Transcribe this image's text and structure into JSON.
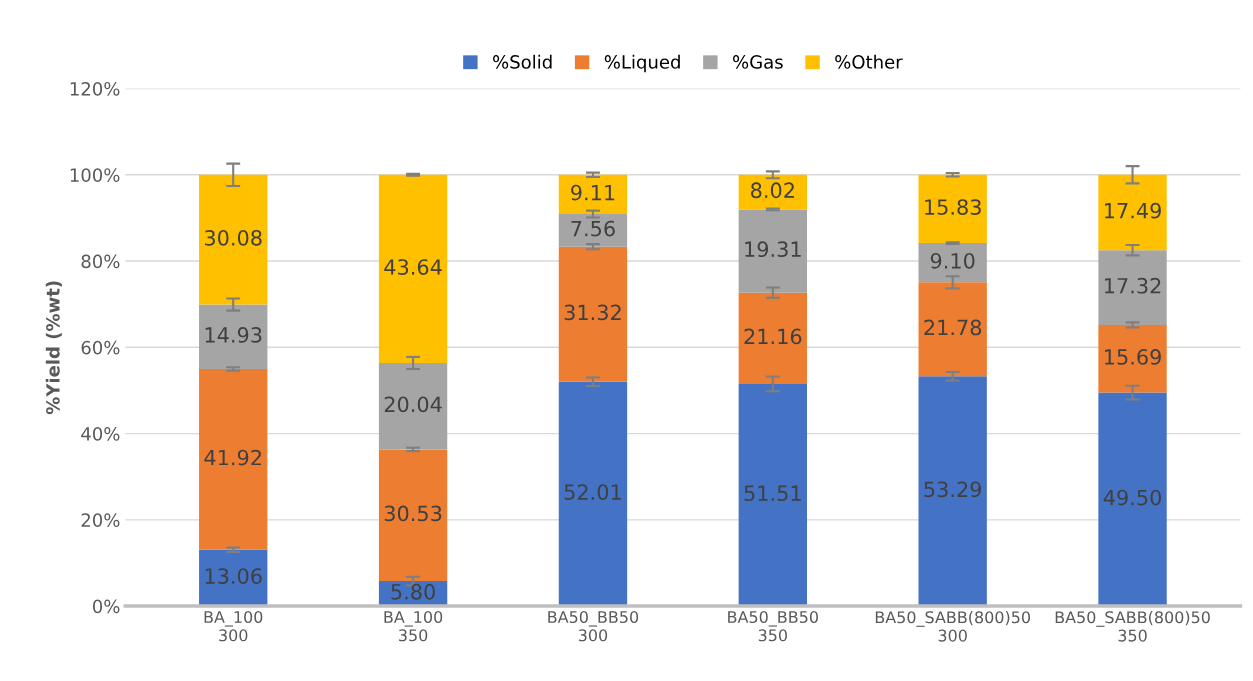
{
  "chart_data": {
    "type": "bar",
    "stacked": true,
    "ylabel": "%Yield (%wt)",
    "categories": [
      "BA_100\n300",
      "BA_100\n350",
      "BA50_BB50\n300",
      "BA50_BB50\n350",
      "BA50_SABB(800)50\n300",
      "BA50_SABB(800)50\n350"
    ],
    "series": [
      {
        "name": "%Solid",
        "color": "#4472c4",
        "values": [
          13.06,
          5.8,
          52.01,
          51.51,
          53.29,
          49.5
        ],
        "value_labels": [
          "13.06",
          "5.80",
          "52.01",
          "51.51",
          "53.29",
          "49.50"
        ],
        "errors": [
          0.5,
          1.0,
          1.0,
          1.7,
          1.0,
          1.6
        ]
      },
      {
        "name": "%Liqued",
        "color": "#ed7d31",
        "values": [
          41.92,
          30.53,
          31.32,
          21.16,
          21.78,
          15.69
        ],
        "value_labels": [
          "41.92",
          "30.53",
          "31.32",
          "21.16",
          "21.78",
          "15.69"
        ],
        "errors": [
          0.4,
          0.4,
          0.6,
          1.2,
          1.4,
          0.6
        ]
      },
      {
        "name": "%Gas",
        "color": "#a5a5a5",
        "values": [
          14.93,
          20.04,
          7.56,
          19.31,
          9.1,
          17.32
        ],
        "value_labels": [
          "14.93",
          "20.04",
          "7.56",
          "19.31",
          "9.10",
          "17.32"
        ],
        "errors": [
          1.4,
          1.4,
          0.8,
          0.2,
          0.2,
          1.2
        ]
      },
      {
        "name": "%Other",
        "color": "#ffc000",
        "values": [
          30.08,
          43.64,
          9.11,
          8.02,
          15.83,
          17.49
        ],
        "value_labels": [
          "30.08",
          "43.64",
          "9.11",
          "8.02",
          "15.83",
          "17.49"
        ],
        "errors": [
          2.6,
          0.2,
          0.5,
          0.8,
          0.4,
          2.0
        ]
      }
    ],
    "ylim": [
      0,
      120
    ],
    "yticks": [
      {
        "value": 0,
        "label": "0%"
      },
      {
        "value": 20,
        "label": "20%"
      },
      {
        "value": 40,
        "label": "40%"
      },
      {
        "value": 60,
        "label": "60%"
      },
      {
        "value": 80,
        "label": "80%"
      },
      {
        "value": 100,
        "label": "100%"
      },
      {
        "value": 120,
        "label": "120%"
      }
    ],
    "grid": "y",
    "legend": "top"
  }
}
